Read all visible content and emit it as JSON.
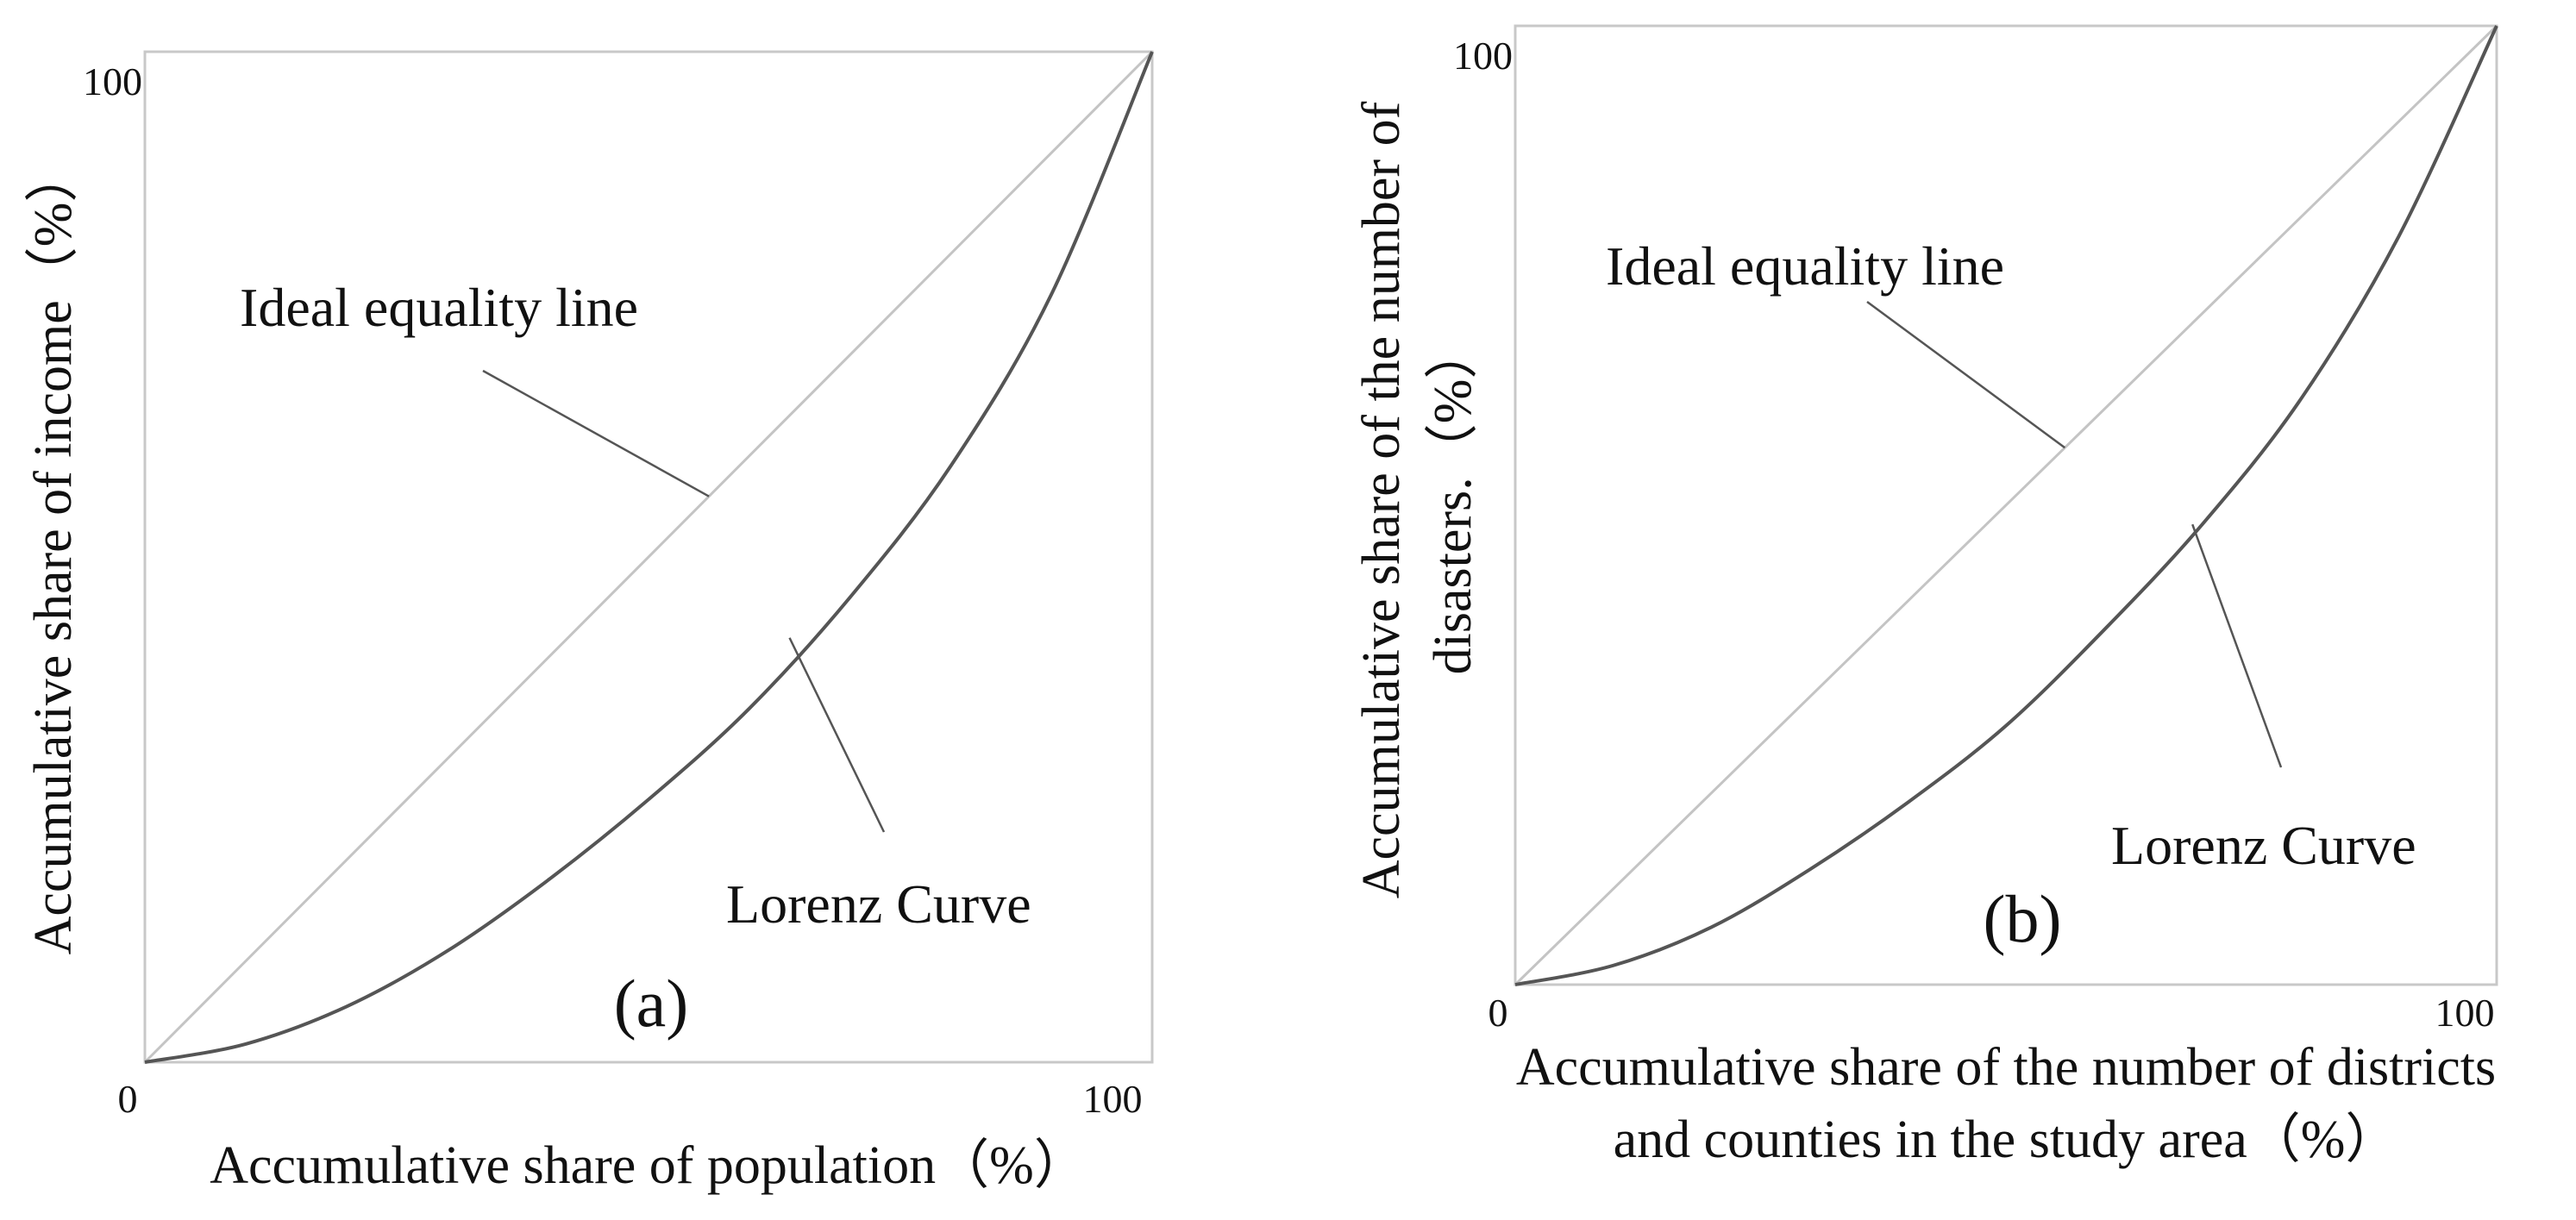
{
  "chart_data": [
    {
      "type": "line",
      "panel_label": "(a)",
      "xlabel": "Accumulative share of population（%）",
      "ylabel": "Accumulative share of income（%）",
      "xlim": [
        0,
        100
      ],
      "ylim": [
        0,
        100
      ],
      "x_ticks": [
        "0",
        "100"
      ],
      "y_ticks": [
        "100"
      ],
      "grid": false,
      "series": [
        {
          "name": "Ideal equality line",
          "x": [
            0,
            100
          ],
          "y": [
            0,
            100
          ]
        },
        {
          "name": "Lorenz Curve",
          "x": [
            0,
            10,
            20,
            30,
            40,
            50,
            60,
            70,
            80,
            90,
            100
          ],
          "y": [
            0,
            1.8,
            5.5,
            11,
            18,
            26,
            35,
            46,
            59,
            76,
            100
          ]
        }
      ],
      "annotations": [
        {
          "text": "Ideal equality line",
          "points_to": [
            56,
            56
          ]
        },
        {
          "text": "Lorenz Curve",
          "points_to": [
            64,
            42
          ]
        }
      ]
    },
    {
      "type": "line",
      "panel_label": "(b)",
      "xlabel_lines": [
        "Accumulative share of the number of districts",
        "and counties in the study area（%）"
      ],
      "ylabel_lines": [
        "Accumulative share of the number of",
        "disasters.（%）"
      ],
      "xlim": [
        0,
        100
      ],
      "ylim": [
        0,
        100
      ],
      "x_ticks": [
        "0",
        "100"
      ],
      "y_ticks": [
        "100"
      ],
      "grid": false,
      "series": [
        {
          "name": "Ideal equality line",
          "x": [
            0,
            100
          ],
          "y": [
            0,
            100
          ]
        },
        {
          "name": "Lorenz Curve",
          "x": [
            0,
            10,
            20,
            30,
            40,
            50,
            60,
            70,
            80,
            90,
            100
          ],
          "y": [
            0,
            2,
            6,
            12,
            19,
            27,
            37,
            48,
            61,
            78,
            100
          ]
        }
      ],
      "annotations": [
        {
          "text": "Ideal equality line",
          "points_to": [
            56,
            56
          ]
        },
        {
          "text": "Lorenz Curve",
          "points_to": [
            69,
            48
          ]
        }
      ]
    }
  ]
}
